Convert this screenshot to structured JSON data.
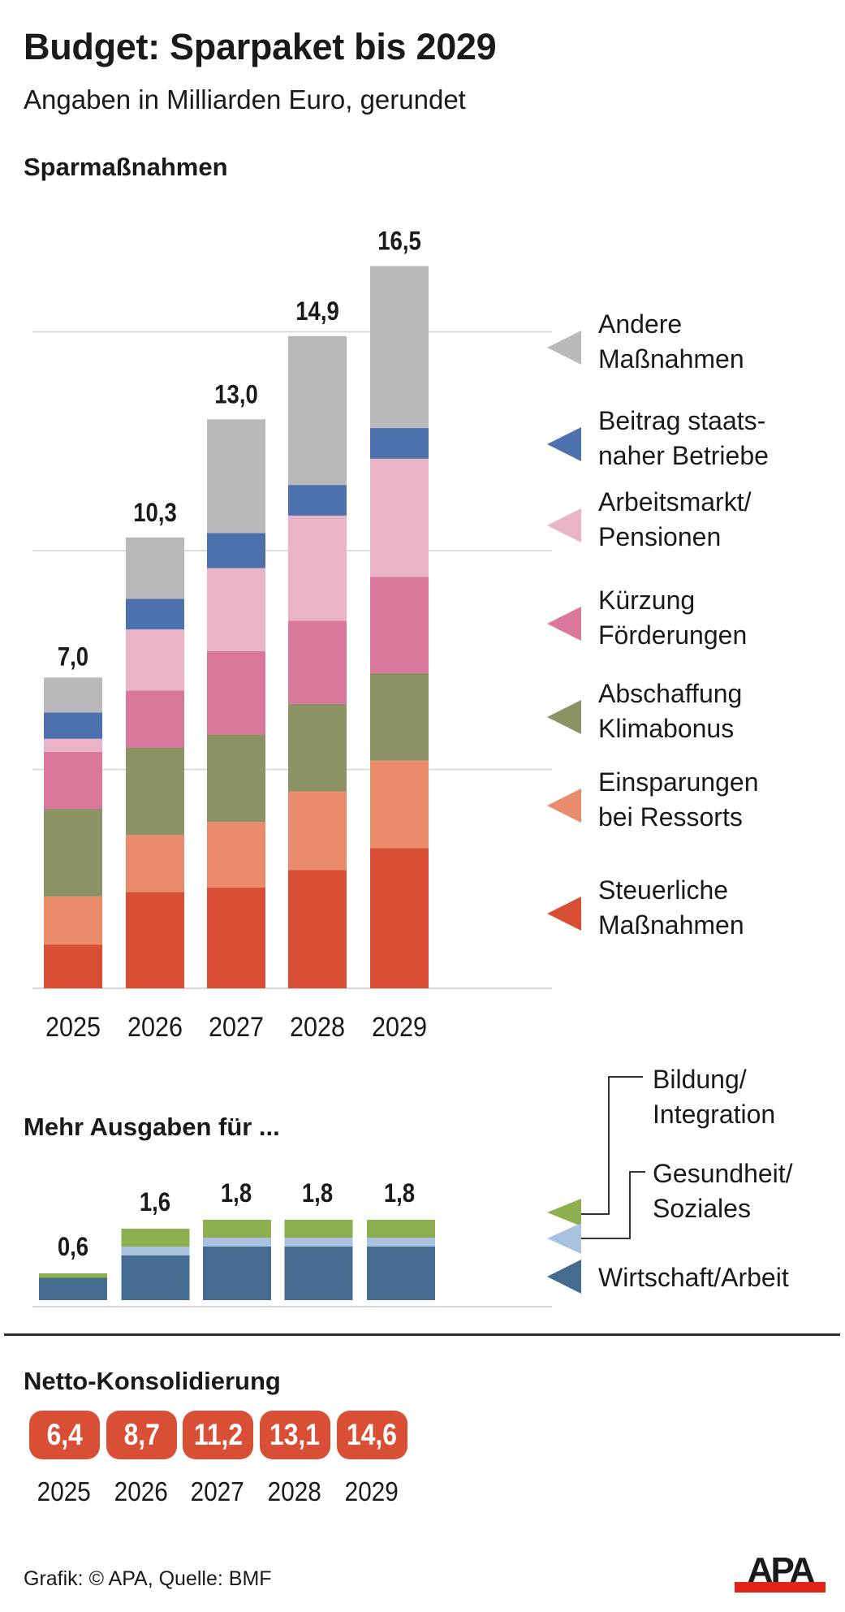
{
  "header": {
    "title": "Budget: Sparpaket bis 2029",
    "subtitle": "Angaben in Milliarden Euro, gerundet"
  },
  "sections": {
    "savings_heading": "Sparmaßnahmen",
    "spending_heading": "Mehr Ausgaben für ...",
    "net_heading": "Netto-Konsolidierung"
  },
  "footer": {
    "credit": "Grafik: © APA, Quelle: BMF",
    "logo_text": "APA",
    "logo_colors": {
      "text": "#1a1a1a",
      "bar": "#e2231a"
    }
  },
  "chart_data": [
    {
      "type": "bar",
      "stacked": true,
      "title": "Sparmaßnahmen",
      "categories": [
        "2025",
        "2026",
        "2027",
        "2028",
        "2029"
      ],
      "totals": [
        7.0,
        10.3,
        13.0,
        14.9,
        16.5
      ],
      "total_labels": [
        "7,0",
        "10,3",
        "13,0",
        "14,9",
        "16,5"
      ],
      "ylim": [
        0,
        16.5
      ],
      "gridlines": [
        0,
        5,
        10,
        15
      ],
      "grid": true,
      "legend_position": "right",
      "series": [
        {
          "name": "Steuerliche Maßnahmen",
          "label_lines": [
            "Steuerliche",
            "Maßnahmen"
          ],
          "color": "#d94f36",
          "values": [
            1.0,
            2.2,
            2.3,
            2.7,
            3.2
          ]
        },
        {
          "name": "Einsparungen bei Ressorts",
          "label_lines": [
            "Einsparungen",
            "bei Ressorts"
          ],
          "color": "#ea8b6b",
          "values": [
            1.1,
            1.3,
            1.5,
            1.8,
            2.0
          ]
        },
        {
          "name": "Abschaffung Klimabonus",
          "label_lines": [
            "Abschaffung",
            "Klimabonus"
          ],
          "color": "#8d9265",
          "values": [
            2.0,
            2.0,
            2.0,
            2.0,
            2.0
          ]
        },
        {
          "name": "Kürzung Förderungen",
          "label_lines": [
            "Kürzung",
            "Förderungen"
          ],
          "color": "#da779c",
          "values": [
            1.3,
            1.3,
            1.9,
            1.9,
            2.2
          ]
        },
        {
          "name": "Arbeitsmarkt/Pensionen",
          "label_lines": [
            "Arbeitsmarkt/",
            "Pensionen"
          ],
          "color": "#ebb3c8",
          "values": [
            0.3,
            1.4,
            1.9,
            2.4,
            2.7
          ]
        },
        {
          "name": "Beitrag staatsnaher Betriebe",
          "label_lines": [
            "Beitrag staats-",
            "naher Betriebe"
          ],
          "color": "#4d71ac",
          "values": [
            0.6,
            0.7,
            0.8,
            0.7,
            0.7
          ]
        },
        {
          "name": "Andere Maßnahmen",
          "label_lines": [
            "Andere",
            "Maßnahmen"
          ],
          "color": "#b9b9bc",
          "values": [
            0.8,
            1.4,
            2.6,
            3.4,
            3.7
          ]
        }
      ],
      "xlabel": "",
      "ylabel": ""
    },
    {
      "type": "bar",
      "stacked": true,
      "title": "Mehr Ausgaben für ...",
      "categories": [
        "2025",
        "2026",
        "2027",
        "2028",
        "2029"
      ],
      "totals": [
        0.6,
        1.6,
        1.8,
        1.8,
        1.8
      ],
      "total_labels": [
        "0,6",
        "1,6",
        "1,8",
        "1,8",
        "1,8"
      ],
      "ylim": [
        0,
        1.8
      ],
      "grid": false,
      "legend_position": "right",
      "series": [
        {
          "name": "Wirtschaft/Arbeit",
          "label_lines": [
            "Wirtschaft/Arbeit"
          ],
          "color": "#466b91",
          "values": [
            0.5,
            1.0,
            1.2,
            1.2,
            1.2
          ]
        },
        {
          "name": "Gesundheit/Soziales",
          "label_lines": [
            "Gesundheit/",
            "Soziales"
          ],
          "color": "#a8c2df",
          "values": [
            0.0,
            0.2,
            0.2,
            0.2,
            0.2
          ]
        },
        {
          "name": "Bildung/Integration",
          "label_lines": [
            "Bildung/",
            "Integration"
          ],
          "color": "#8eaf4f",
          "values": [
            0.1,
            0.4,
            0.4,
            0.4,
            0.4
          ]
        }
      ],
      "xlabel": "",
      "ylabel": ""
    },
    {
      "type": "table",
      "title": "Netto-Konsolidierung",
      "categories": [
        "2025",
        "2026",
        "2027",
        "2028",
        "2029"
      ],
      "values": [
        6.4,
        8.7,
        11.2,
        13.1,
        14.6
      ],
      "value_labels": [
        "6,4",
        "8,7",
        "11,2",
        "13,1",
        "14,6"
      ],
      "color": "#d94f36"
    }
  ]
}
